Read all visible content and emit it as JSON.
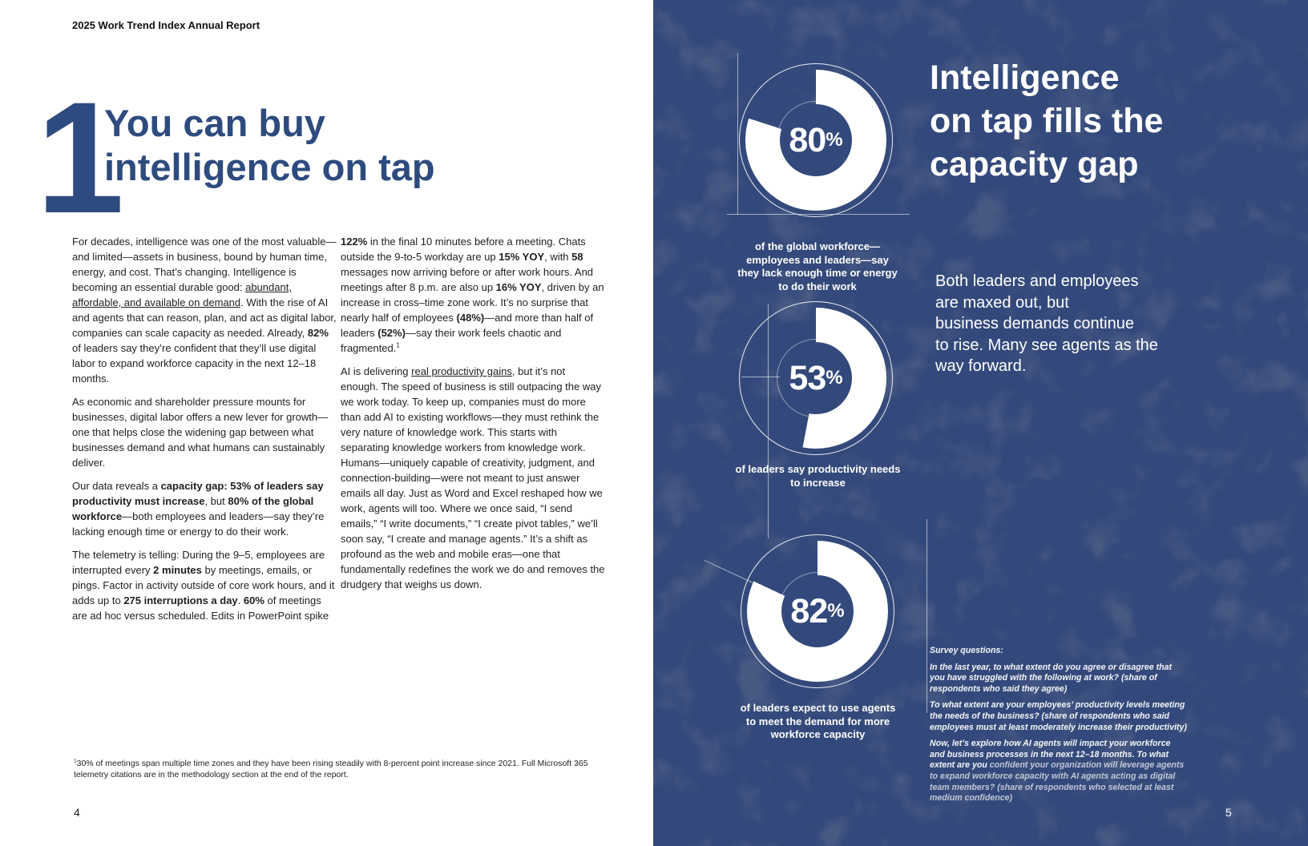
{
  "colors": {
    "page_background": "#ffffff",
    "navy_background": "#34497b",
    "navy_texture_patch": "#1a2441",
    "heading_blue": "#2d4b7e",
    "body_text": "#1f1f1f",
    "donut_fill": "#ffffff",
    "white_text": "#ffffff"
  },
  "page_left": {
    "header": "2025 Work Trend Index Annual Report",
    "chapter_number": "1",
    "title_lines": [
      "You can buy",
      "intelligence on tap"
    ],
    "column1_paragraphs": [
      [
        {
          "t": "For decades, intelligence was one of the most valuable—and limited—assets in business, bound by human time, energy, and cost. That’s changing. Intelligence is becoming an essential durable good: "
        },
        {
          "t": "abundant, affordable, and available on demand",
          "u": true
        },
        {
          "t": ". With the rise of AI and agents that can reason, plan, and act as digital labor, companies can scale capacity as needed. Already, "
        },
        {
          "t": "82%",
          "b": true
        },
        {
          "t": " of leaders say they’re confident that they’ll use digital labor to expand workforce capacity in the next 12–18 months."
        }
      ],
      [
        {
          "t": "As economic and shareholder pressure mounts for businesses, digital labor offers a new lever for growth—one that helps close the widening gap between what businesses demand and what humans can sustainably deliver."
        }
      ],
      [
        {
          "t": "Our data reveals a "
        },
        {
          "t": "capacity gap: 53% of leaders say productivity must increase",
          "b": true
        },
        {
          "t": ", but "
        },
        {
          "t": "80% of the global workforce",
          "b": true
        },
        {
          "t": "—both employees and leaders—say they’re lacking enough time or energy to do their work."
        }
      ],
      [
        {
          "t": "The telemetry is telling: During the 9–5, employees are interrupted every "
        },
        {
          "t": "2 minutes",
          "b": true
        },
        {
          "t": " by meetings, emails, or pings. Factor in activity outside of core work hours, and it adds up to "
        },
        {
          "t": "275 interruptions a day",
          "b": true
        },
        {
          "t": ". "
        },
        {
          "t": "60%",
          "b": true
        },
        {
          "t": " of meetings are ad hoc versus scheduled. Edits in PowerPoint spike"
        }
      ]
    ],
    "column2_paragraphs": [
      [
        {
          "t": "122%",
          "b": true
        },
        {
          "t": " in the final 10 minutes before a meeting. Chats outside the 9-to-5 workday are up "
        },
        {
          "t": "15% YOY",
          "b": true
        },
        {
          "t": ", with "
        },
        {
          "t": "58",
          "b": true
        },
        {
          "t": " messages now arriving before or after work hours. And meetings after 8 p.m. are also up "
        },
        {
          "t": "16% YOY",
          "b": true
        },
        {
          "t": ", driven by an increase in cross–time zone work. It’s no surprise that nearly half of employees "
        },
        {
          "t": "(48%)",
          "b": true
        },
        {
          "t": "—and more than half of leaders "
        },
        {
          "t": "(52%)",
          "b": true
        },
        {
          "t": "—say their work feels chaotic and fragmented."
        },
        {
          "t": "1",
          "sup": true
        }
      ],
      [
        {
          "t": "AI is delivering "
        },
        {
          "t": "real productivity gains",
          "u": true
        },
        {
          "t": ", but it’s not enough. The speed of business is still outpacing the way we work today. To keep up, companies must do more than add AI to existing workflows—they must rethink the very nature of knowledge work. This starts with separating knowledge workers from knowledge work. Humans—uniquely capable of creativity, judgment, and connection-building—were not meant to just answer emails all day. Just as Word and Excel reshaped how we work, agents will too. Where we once said, “I send emails,” “I write documents,” “I create pivot tables,” we’ll soon say, “I create and manage agents.” It’s a shift as profound as the web and mobile eras—one that fundamentally redefines the work we do and removes the drudgery that weighs us down."
        }
      ]
    ],
    "footnote": [
      {
        "t": "1",
        "sup": true
      },
      {
        "t": "30% of meetings span multiple time zones and they have been rising steadily with 8-percent point increase since 2021. Full Microsoft 365 telemetry citations are in the methodology section at the end of the report."
      }
    ],
    "page_number": "4"
  },
  "page_right": {
    "title_lines": [
      "Intelligence",
      "on tap fills the",
      "capacity gap"
    ],
    "intro_lines": [
      "Both leaders and employees",
      "are maxed out, but",
      "business demands continue",
      "to rise. Many see agents as the",
      "way forward."
    ],
    "donuts": [
      {
        "value": 80,
        "unit": "%",
        "caption": "of the global workforce—employees and leaders—say they lack enough time or energy to do their work"
      },
      {
        "value": 53,
        "unit": "%",
        "caption": "of leaders say productivity needs to increase"
      },
      {
        "value": 82,
        "unit": "%",
        "caption": "of leaders expect to use agents to meet the demand for more workforce capacity"
      }
    ],
    "survey": {
      "heading": "Survey questions:",
      "questions": [
        [
          {
            "t": "In the last year, to what extent do you agree or disagree that you have struggled with the following at work? (share of respondents who said they agree)"
          }
        ],
        [
          {
            "t": "To what extent are your employees’ productivity levels meeting the needs of the business? (share of respondents who said employees must at least moderately increase their productivity)"
          }
        ],
        [
          {
            "t": "Now, let’s explore how AI agents will impact your workforce and business processes in the next 12–18 months. To what extent are you "
          },
          {
            "t": "confident your organization will leverage agents to expand workforce capacity with AI agents acting as digital team members? (share of respondents who selected at least medium confidence)",
            "dim": true
          }
        ]
      ]
    },
    "page_number": "5"
  },
  "chart_data": [
    {
      "type": "pie",
      "title": "of the global workforce—employees and leaders—say they lack enough time or energy to do their work",
      "labels": [
        "agree",
        "remainder"
      ],
      "values": [
        80,
        20
      ],
      "center_label": "80%"
    },
    {
      "type": "pie",
      "title": "of leaders say productivity needs to increase",
      "labels": [
        "agree",
        "remainder"
      ],
      "values": [
        53,
        47
      ],
      "center_label": "53%"
    },
    {
      "type": "pie",
      "title": "of leaders expect to use agents to meet the demand for more workforce capacity",
      "labels": [
        "agree",
        "remainder"
      ],
      "values": [
        82,
        18
      ],
      "center_label": "82%"
    }
  ]
}
